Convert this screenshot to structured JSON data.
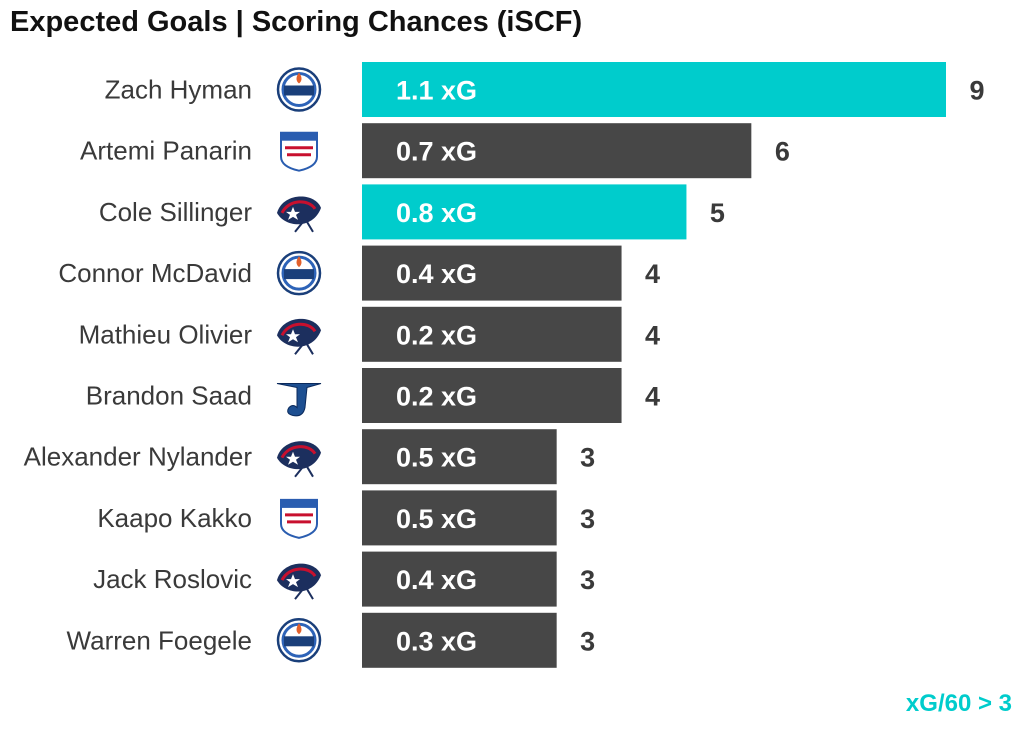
{
  "chart_data": {
    "type": "bar",
    "orientation": "horizontal",
    "title": "Expected Goals | Scoring Chances (iSCF)",
    "footnote": "xG/60 > 3",
    "value_suffix": " xG",
    "colors": {
      "highlight": "#00CCCC",
      "default": "#474747",
      "label_text": "#3a3a3a",
      "bar_text": "#ffffff"
    },
    "rows": [
      {
        "player": "Zach Hyman",
        "team": "EDM",
        "team_icon": "oilers-logo-icon",
        "scoring_chances": 9,
        "xg": "1.1",
        "highlight": true
      },
      {
        "player": "Artemi Panarin",
        "team": "NYR",
        "team_icon": "rangers-logo-icon",
        "scoring_chances": 6,
        "xg": "0.7",
        "highlight": false
      },
      {
        "player": "Cole Sillinger",
        "team": "CBJ",
        "team_icon": "blue-jackets-logo-icon",
        "scoring_chances": 5,
        "xg": "0.8",
        "highlight": true
      },
      {
        "player": "Connor McDavid",
        "team": "EDM",
        "team_icon": "oilers-logo-icon",
        "scoring_chances": 4,
        "xg": "0.4",
        "highlight": false
      },
      {
        "player": "Mathieu Olivier",
        "team": "CBJ",
        "team_icon": "blue-jackets-logo-icon",
        "scoring_chances": 4,
        "xg": "0.2",
        "highlight": false
      },
      {
        "player": "Brandon Saad",
        "team": "STL",
        "team_icon": "blues-logo-icon",
        "scoring_chances": 4,
        "xg": "0.2",
        "highlight": false
      },
      {
        "player": "Alexander Nylander",
        "team": "CBJ",
        "team_icon": "blue-jackets-logo-icon",
        "scoring_chances": 3,
        "xg": "0.5",
        "highlight": false
      },
      {
        "player": "Kaapo Kakko",
        "team": "NYR",
        "team_icon": "rangers-logo-icon",
        "scoring_chances": 3,
        "xg": "0.5",
        "highlight": false
      },
      {
        "player": "Jack Roslovic",
        "team": "CBJ",
        "team_icon": "blue-jackets-logo-icon",
        "scoring_chances": 3,
        "xg": "0.4",
        "highlight": false
      },
      {
        "player": "Warren Foegele",
        "team": "EDM",
        "team_icon": "oilers-logo-icon",
        "scoring_chances": 3,
        "xg": "0.3",
        "highlight": false
      }
    ],
    "xlim": [
      0,
      9
    ],
    "grid": false,
    "legend": "none"
  }
}
